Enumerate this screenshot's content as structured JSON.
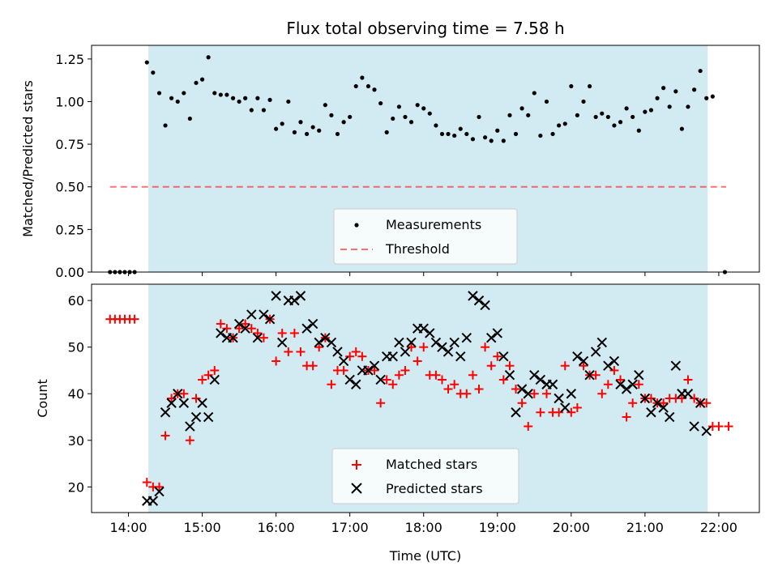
{
  "chart_data": [
    {
      "type": "scatter",
      "title": "Flux total observing time = 7.58 h",
      "xlabel": "",
      "ylabel": "Matched/Predicted stars",
      "xlim": [
        13.5,
        22.55
      ],
      "ylim": [
        0,
        1.33
      ],
      "yticks": [
        "0.00",
        "0.25",
        "0.50",
        "0.75",
        "1.00",
        "1.25"
      ],
      "ytick_values": [
        0,
        0.25,
        0.5,
        0.75,
        1.0,
        1.25
      ],
      "observing_window": [
        14.27,
        21.85
      ],
      "shade_color": "#add8e6",
      "legend": {
        "placement": "lower-center",
        "entries": [
          "Measurements",
          "Threshold"
        ]
      },
      "threshold": {
        "name": "Threshold",
        "y": 0.5,
        "x_range": [
          13.75,
          22.1
        ],
        "color": "#ff0000"
      },
      "series": [
        {
          "name": "Measurements",
          "color": "#000000",
          "marker": "dot",
          "x": [
            13.75,
            13.817,
            13.883,
            13.95,
            14.017,
            14.083,
            14.25,
            14.333,
            14.417,
            14.5,
            14.583,
            14.667,
            14.75,
            14.833,
            14.917,
            15.0,
            15.083,
            15.167,
            15.25,
            15.333,
            15.417,
            15.5,
            15.583,
            15.667,
            15.75,
            15.833,
            15.917,
            16.0,
            16.083,
            16.167,
            16.25,
            16.333,
            16.417,
            16.5,
            16.583,
            16.667,
            16.75,
            16.833,
            16.917,
            17.0,
            17.083,
            17.167,
            17.25,
            17.333,
            17.417,
            17.5,
            17.583,
            17.667,
            17.75,
            17.833,
            17.917,
            18.0,
            18.083,
            18.167,
            18.25,
            18.333,
            18.417,
            18.5,
            18.583,
            18.667,
            18.75,
            18.833,
            18.917,
            19.0,
            19.083,
            19.167,
            19.25,
            19.333,
            19.417,
            19.5,
            19.583,
            19.667,
            19.75,
            19.833,
            19.917,
            20.0,
            20.083,
            20.167,
            20.25,
            20.333,
            20.417,
            20.5,
            20.583,
            20.667,
            20.75,
            20.833,
            20.917,
            21.0,
            21.083,
            21.167,
            21.25,
            21.333,
            21.417,
            21.5,
            21.583,
            21.667,
            21.75,
            21.833,
            21.917,
            22.083
          ],
          "y": [
            0.0,
            0.0,
            0.0,
            0.0,
            0.0,
            0.0,
            1.23,
            1.17,
            1.05,
            0.86,
            1.02,
            1.0,
            1.05,
            0.9,
            1.11,
            1.13,
            1.26,
            1.05,
            1.04,
            1.04,
            1.02,
            1.0,
            1.02,
            0.95,
            1.02,
            0.95,
            1.01,
            0.84,
            0.87,
            1.0,
            0.82,
            0.88,
            0.81,
            0.85,
            0.83,
            0.98,
            0.92,
            0.81,
            0.88,
            0.91,
            1.09,
            1.14,
            1.09,
            1.07,
            0.99,
            0.82,
            0.9,
            0.97,
            0.91,
            0.88,
            0.98,
            0.96,
            0.93,
            0.86,
            0.81,
            0.81,
            0.8,
            0.84,
            0.81,
            0.78,
            0.91,
            0.79,
            0.77,
            0.83,
            0.77,
            0.92,
            0.81,
            0.96,
            0.92,
            1.05,
            0.8,
            1.0,
            0.81,
            0.86,
            0.87,
            1.09,
            0.92,
            1.0,
            1.09,
            0.91,
            0.93,
            0.91,
            0.86,
            0.88,
            0.96,
            0.91,
            0.83,
            0.94,
            0.95,
            1.02,
            1.08,
            0.97,
            1.06,
            0.84,
            0.97,
            1.07,
            1.18,
            1.02,
            1.03,
            0.0
          ]
        }
      ]
    },
    {
      "type": "scatter",
      "title": "",
      "xlabel": "Time (UTC)",
      "ylabel": "Count",
      "xlim": [
        13.5,
        22.55
      ],
      "ylim": [
        14.5,
        63.5
      ],
      "yticks": [
        "20",
        "30",
        "40",
        "50",
        "60"
      ],
      "ytick_values": [
        20,
        30,
        40,
        50,
        60
      ],
      "xticks": [
        "14:00",
        "15:00",
        "16:00",
        "17:00",
        "18:00",
        "19:00",
        "20:00",
        "21:00",
        "22:00"
      ],
      "xtick_values": [
        14,
        15,
        16,
        17,
        18,
        19,
        20,
        21,
        22
      ],
      "observing_window": [
        14.27,
        21.85
      ],
      "shade_color": "#add8e6",
      "legend": {
        "placement": "lower-center",
        "entries": [
          "Matched stars",
          "Predicted stars"
        ]
      },
      "series": [
        {
          "name": "Matched stars",
          "color": "#ff0000",
          "marker": "plus",
          "x": [
            13.75,
            13.817,
            13.883,
            13.95,
            14.017,
            14.083,
            14.25,
            14.333,
            14.417,
            14.5,
            14.583,
            14.667,
            14.75,
            14.833,
            14.917,
            15.0,
            15.083,
            15.167,
            15.25,
            15.333,
            15.417,
            15.5,
            15.583,
            15.667,
            15.75,
            15.833,
            15.917,
            16.0,
            16.083,
            16.167,
            16.25,
            16.333,
            16.417,
            16.5,
            16.583,
            16.667,
            16.75,
            16.833,
            16.917,
            17.0,
            17.083,
            17.167,
            17.25,
            17.333,
            17.417,
            17.5,
            17.583,
            17.667,
            17.75,
            17.833,
            17.917,
            18.0,
            18.083,
            18.167,
            18.25,
            18.333,
            18.417,
            18.5,
            18.583,
            18.667,
            18.75,
            18.833,
            18.917,
            19.0,
            19.083,
            19.167,
            19.25,
            19.333,
            19.417,
            19.5,
            19.583,
            19.667,
            19.75,
            19.833,
            19.917,
            20.0,
            20.083,
            20.167,
            20.25,
            20.333,
            20.417,
            20.5,
            20.583,
            20.667,
            20.75,
            20.833,
            20.917,
            21.0,
            21.083,
            21.167,
            21.25,
            21.333,
            21.417,
            21.5,
            21.583,
            21.667,
            21.75,
            21.833,
            21.917,
            22.0,
            22.133
          ],
          "y": [
            56,
            56,
            56,
            56,
            56,
            56,
            21,
            20,
            20,
            31,
            39,
            40,
            40,
            30,
            39,
            43,
            44,
            45,
            55,
            54,
            52,
            54,
            55,
            54,
            53,
            52,
            56,
            47,
            53,
            49,
            53,
            49,
            46,
            46,
            50,
            52,
            42,
            45,
            45,
            48,
            49,
            48,
            45,
            45,
            38,
            43,
            42,
            44,
            45,
            50,
            47,
            50,
            44,
            44,
            43,
            41,
            42,
            40,
            40,
            44,
            41,
            50,
            46,
            48,
            43,
            46,
            41,
            38,
            33,
            40,
            36,
            40,
            36,
            36,
            46,
            36,
            37,
            46,
            44,
            44,
            40,
            42,
            45,
            43,
            35,
            38,
            42,
            39,
            39,
            38,
            38,
            39,
            39,
            39,
            43,
            39,
            38,
            38,
            33,
            33,
            33
          ]
        },
        {
          "name": "Predicted stars",
          "color": "#000000",
          "marker": "cross",
          "x": [
            14.25,
            14.333,
            14.417,
            14.5,
            14.583,
            14.667,
            14.75,
            14.833,
            14.917,
            15.0,
            15.083,
            15.167,
            15.25,
            15.333,
            15.417,
            15.5,
            15.583,
            15.667,
            15.75,
            15.833,
            15.917,
            16.0,
            16.083,
            16.167,
            16.25,
            16.333,
            16.417,
            16.5,
            16.583,
            16.667,
            16.75,
            16.833,
            16.917,
            17.0,
            17.083,
            17.167,
            17.25,
            17.333,
            17.417,
            17.5,
            17.583,
            17.667,
            17.75,
            17.833,
            17.917,
            18.0,
            18.083,
            18.167,
            18.25,
            18.333,
            18.417,
            18.5,
            18.583,
            18.667,
            18.75,
            18.833,
            18.917,
            19.0,
            19.083,
            19.167,
            19.25,
            19.333,
            19.417,
            19.5,
            19.583,
            19.667,
            19.75,
            19.833,
            19.917,
            20.0,
            20.083,
            20.167,
            20.25,
            20.333,
            20.417,
            20.5,
            20.583,
            20.667,
            20.75,
            20.833,
            20.917,
            21.0,
            21.083,
            21.167,
            21.25,
            21.333,
            21.417,
            21.5,
            21.583,
            21.667,
            21.75,
            21.833
          ],
          "y": [
            17,
            17,
            19,
            36,
            38,
            40,
            38,
            33,
            35,
            38,
            35,
            43,
            53,
            52,
            52,
            55,
            54,
            57,
            52,
            57,
            56,
            61,
            51,
            60,
            60,
            61,
            54,
            55,
            51,
            52,
            51,
            49,
            47,
            43,
            42,
            45,
            45,
            46,
            43,
            48,
            48,
            51,
            49,
            51,
            54,
            54,
            53,
            51,
            50,
            49,
            51,
            48,
            52,
            61,
            60,
            59,
            52,
            53,
            48,
            44,
            36,
            41,
            40,
            44,
            43,
            42,
            42,
            39,
            37,
            40,
            48,
            47,
            44,
            49,
            51,
            46,
            47,
            42,
            41,
            42,
            44,
            39,
            36,
            38,
            37,
            35,
            46,
            40,
            40,
            33,
            38,
            32
          ]
        }
      ]
    }
  ]
}
